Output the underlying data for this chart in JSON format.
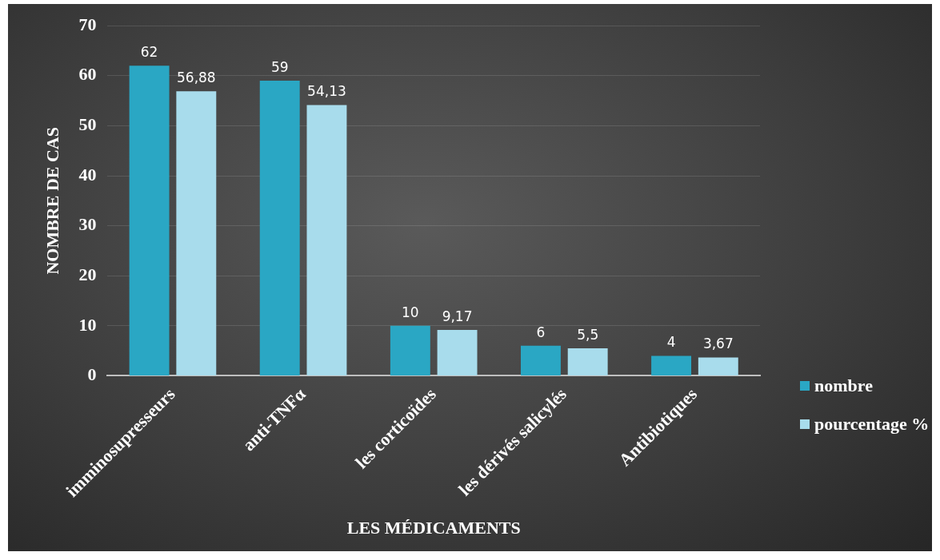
{
  "chart_data": {
    "type": "bar",
    "xlabel": "LES MÉDICAMENTS",
    "ylabel": "NOMBRE DE CAS",
    "categories": [
      "imminosupresseurs",
      "anti-TNFα",
      "les corticoïdes",
      "les dérivés salicylés",
      "Antibiotiques"
    ],
    "series": [
      {
        "name": "nombre",
        "color": "#2aa7c4",
        "values": [
          62,
          59,
          10,
          6,
          4
        ],
        "value_labels": [
          "62",
          "59",
          "10",
          "6",
          "4"
        ]
      },
      {
        "name": "pourcentage %",
        "color": "#a8dcec",
        "values": [
          56.88,
          54.13,
          9.17,
          5.5,
          3.67
        ],
        "value_labels": [
          "56,88",
          "54,13",
          "9,17",
          "5,5",
          "3,67"
        ]
      }
    ],
    "ylim": [
      0,
      70
    ],
    "yticks": [
      0,
      10,
      20,
      30,
      40,
      50,
      60,
      70
    ],
    "grid": "y",
    "legend": "right"
  }
}
